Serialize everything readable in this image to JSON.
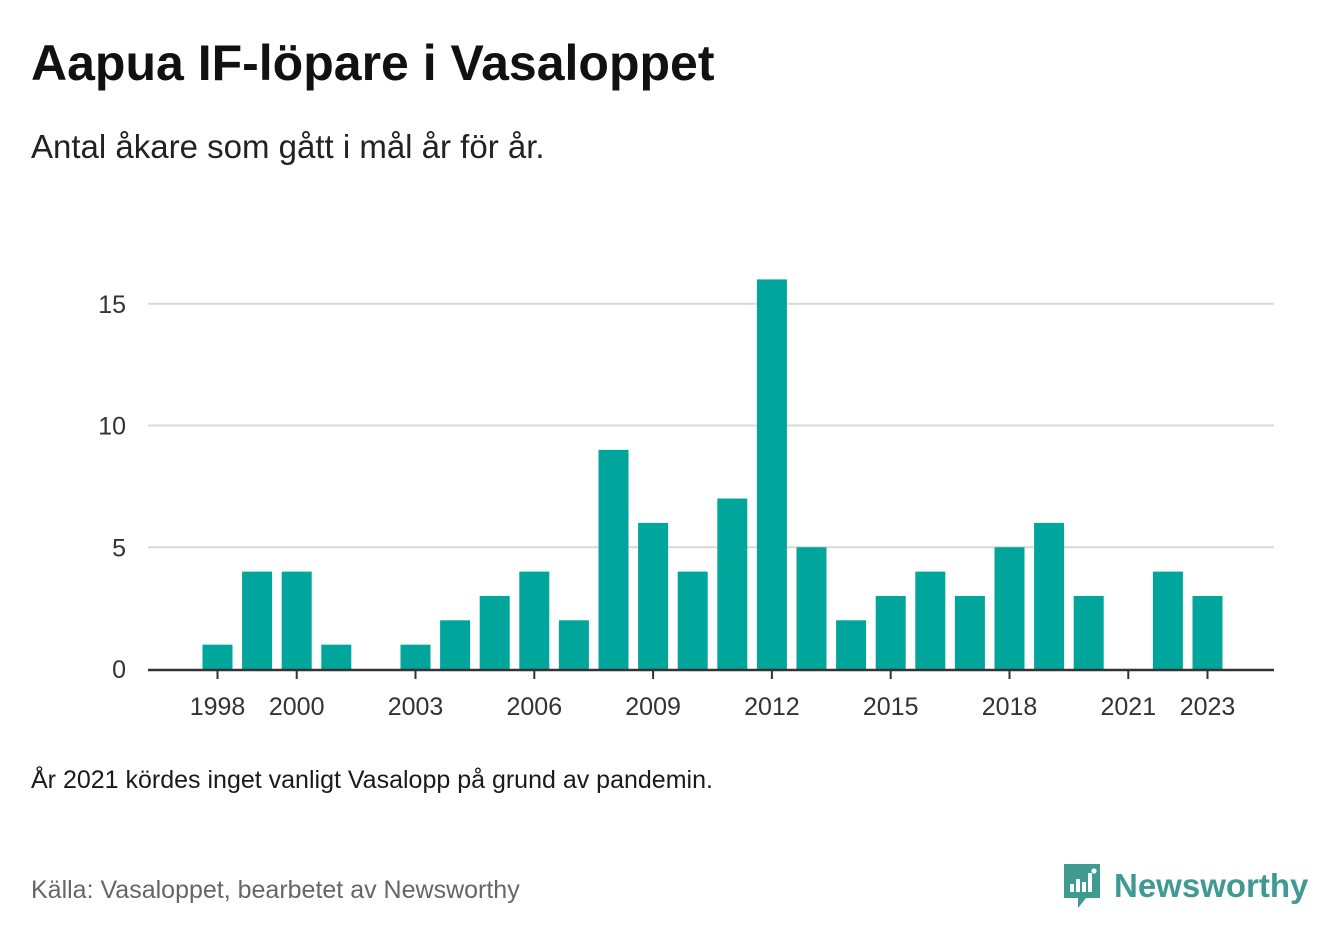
{
  "header": {
    "title": "Aapua IF-löpare i Vasaloppet",
    "subtitle": "Antal åkare som gått i mål år för år."
  },
  "colors": {
    "bar": "#00a69c",
    "grid": "#d9d9d9",
    "axis": "#333333",
    "brand": "#3f9a91"
  },
  "chart_data": {
    "type": "bar",
    "categories": [
      "1998",
      "1999",
      "2000",
      "2001",
      "2002",
      "2003",
      "2004",
      "2005",
      "2006",
      "2007",
      "2008",
      "2009",
      "2010",
      "2011",
      "2012",
      "2013",
      "2014",
      "2015",
      "2016",
      "2017",
      "2018",
      "2019",
      "2020",
      "2021",
      "2022",
      "2023"
    ],
    "values": [
      1,
      4,
      4,
      1,
      0,
      1,
      2,
      3,
      4,
      2,
      9,
      6,
      4,
      7,
      16,
      5,
      2,
      3,
      4,
      3,
      5,
      6,
      3,
      0,
      4,
      3
    ],
    "xticks": [
      "1998",
      "2000",
      "2003",
      "2006",
      "2009",
      "2012",
      "2015",
      "2018",
      "2021",
      "2023"
    ],
    "yticks": [
      0,
      5,
      10,
      15
    ],
    "ylim": [
      0,
      16
    ],
    "grid": true
  },
  "footer": {
    "note": "År 2021 kördes inget vanligt Vasalopp på grund av pandemin.",
    "source": "Källa: Vasaloppet, bearbetet av Newsworthy",
    "brand": "Newsworthy",
    "brand_icon": "newsworthy-logo-icon"
  }
}
